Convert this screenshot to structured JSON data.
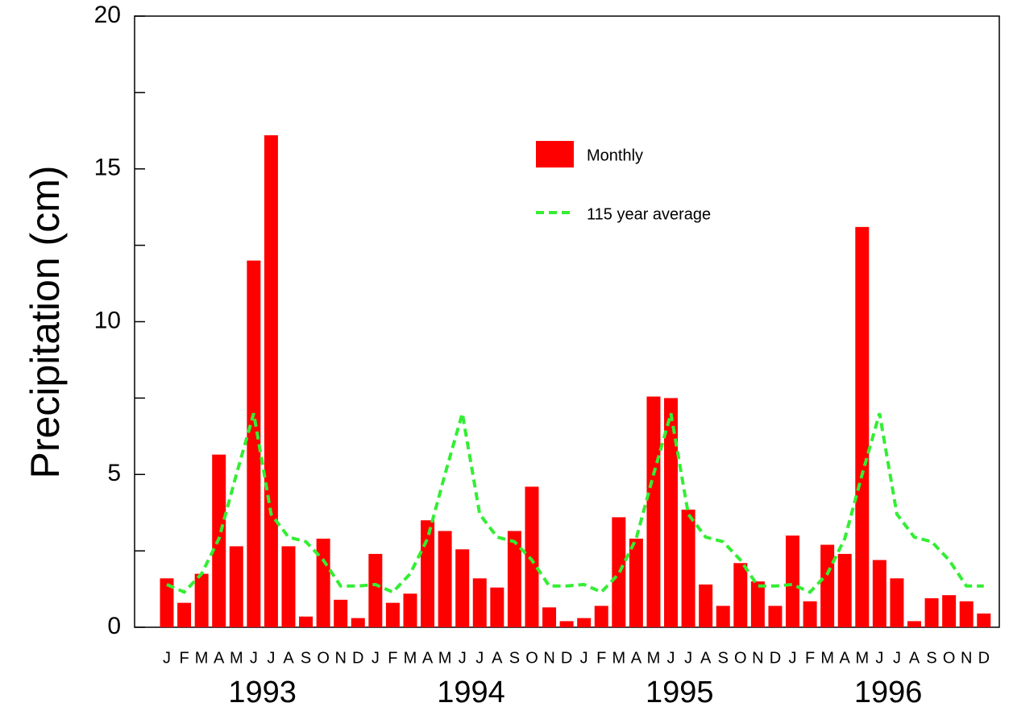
{
  "chart_data": {
    "type": "bar",
    "y_label": "Precipitation (cm)",
    "categories": [
      "J",
      "F",
      "M",
      "A",
      "M",
      "J",
      "J",
      "A",
      "S",
      "O",
      "N",
      "D",
      "J",
      "F",
      "M",
      "A",
      "M",
      "J",
      "J",
      "A",
      "S",
      "O",
      "N",
      "D",
      "J",
      "F",
      "M",
      "A",
      "M",
      "J",
      "J",
      "A",
      "S",
      "O",
      "N",
      "D",
      "J",
      "F",
      "M",
      "A",
      "M",
      "J",
      "J",
      "A",
      "S",
      "O",
      "N",
      "D"
    ],
    "year_labels": [
      "1993",
      "1994",
      "1995",
      "1996"
    ],
    "series": [
      {
        "name": "Monthly",
        "type": "bar",
        "color": "#ff0000",
        "values": [
          1.6,
          0.8,
          1.75,
          5.65,
          2.65,
          12.0,
          16.1,
          2.65,
          0.35,
          2.9,
          0.9,
          0.3,
          2.4,
          0.8,
          1.1,
          3.5,
          3.15,
          2.55,
          1.6,
          1.3,
          3.15,
          4.6,
          0.65,
          0.2,
          0.3,
          0.7,
          3.6,
          2.9,
          7.55,
          7.5,
          3.85,
          1.4,
          0.7,
          2.1,
          1.5,
          0.7,
          3.0,
          0.85,
          2.7,
          2.4,
          13.1,
          2.2,
          1.6,
          0.2,
          0.95,
          1.05,
          0.85,
          0.45
        ]
      },
      {
        "name": "115 year average",
        "type": "line",
        "color": "#33ee33",
        "dashed": true,
        "values": [
          1.4,
          1.15,
          1.75,
          2.9,
          5.0,
          7.0,
          3.7,
          2.95,
          2.8,
          2.2,
          1.35,
          1.35,
          1.4,
          1.15,
          1.75,
          2.9,
          5.0,
          7.0,
          3.7,
          2.95,
          2.8,
          2.2,
          1.35,
          1.35,
          1.4,
          1.15,
          1.75,
          2.9,
          5.0,
          7.0,
          3.7,
          2.95,
          2.8,
          2.2,
          1.35,
          1.35,
          1.4,
          1.15,
          1.75,
          2.9,
          5.0,
          7.0,
          3.7,
          2.95,
          2.8,
          2.2,
          1.35,
          1.35
        ]
      }
    ],
    "ylim": [
      0,
      20
    ],
    "yticks": [
      0,
      5,
      10,
      15,
      20
    ],
    "yminorticks": [
      2.5,
      7.5,
      12.5,
      17.5
    ],
    "legend": "top-center"
  }
}
